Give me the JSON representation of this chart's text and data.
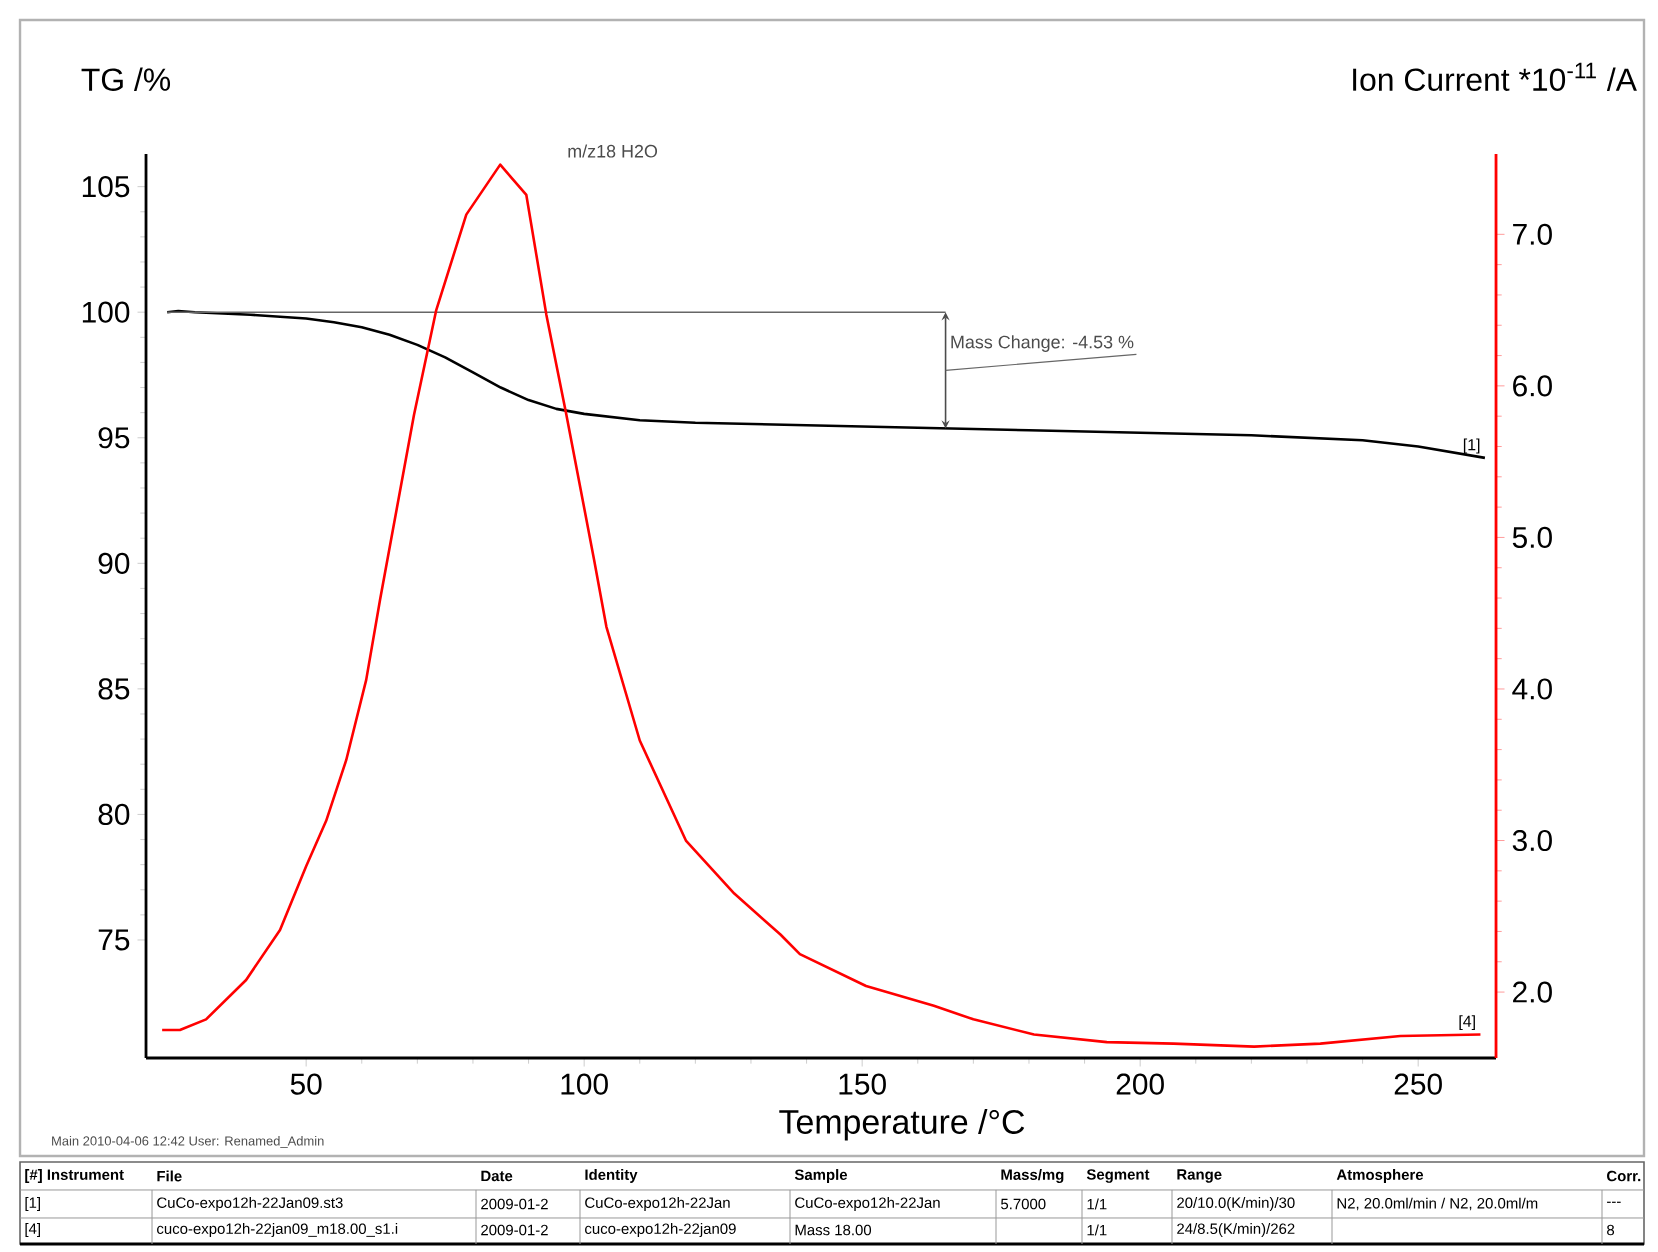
{
  "chart_data": {
    "type": "line",
    "xlabel": "Temperature /°C",
    "ylabel": "TG /%",
    "y2label": "Ion Current *10$^{-11}$ /A",
    "xlim": [
      21.2,
      264
    ],
    "xticks": [
      50,
      100,
      150,
      200,
      250
    ],
    "ylim": [
      70.3,
      106.3
    ],
    "yticks": [
      75,
      80,
      85,
      90,
      95,
      100,
      105
    ],
    "y2lim": [
      1.565,
      7.53
    ],
    "y2ticks": [
      {
        "value": 2,
        "label": "2.0"
      },
      {
        "value": 3,
        "label": "3.0"
      },
      {
        "value": 4,
        "label": "4.0"
      },
      {
        "value": 5,
        "label": "5.0"
      },
      {
        "value": 6,
        "label": "6.0"
      },
      {
        "value": 7,
        "label": "7.0"
      }
    ],
    "series": [
      {
        "color": "#000000",
        "x": [
          25,
          27,
          30,
          40,
          50,
          55,
          60,
          65,
          70,
          75,
          80,
          85,
          90,
          95,
          100,
          110,
          120,
          140,
          160,
          180,
          200,
          220,
          240,
          250,
          262
        ],
        "values": [
          100.0,
          100.05,
          100.0,
          99.9,
          99.75,
          99.6,
          99.4,
          99.1,
          98.7,
          98.2,
          97.6,
          97.0,
          96.5,
          96.15,
          95.95,
          95.7,
          95.6,
          95.5,
          95.4,
          95.3,
          95.2,
          95.1,
          94.9,
          94.65,
          94.2
        ]
      },
      {
        "name": "m/z18 H2O",
        "color": "#ff0000",
        "axis": "y2",
        "x": [
          24.1,
          27.3,
          32,
          39.2,
          45.3,
          50,
          53.6,
          57.2,
          60.8,
          63.3,
          69.4,
          73.4,
          78.8,
          84.9,
          89.6,
          93.2,
          96.8,
          101.8,
          104,
          110,
          118.3,
          127,
          135.3,
          138.8,
          150.7,
          162.9,
          170,
          180.9,
          194,
          206,
          220.5,
          232.4,
          246.8,
          261.2
        ],
        "values": [
          1.75,
          1.75,
          1.82,
          2.08,
          2.41,
          2.83,
          3.13,
          3.53,
          4.06,
          4.59,
          5.81,
          6.5,
          7.13,
          7.46,
          7.26,
          6.47,
          5.81,
          4.85,
          4.41,
          3.66,
          3.0,
          2.65,
          2.38,
          2.25,
          2.04,
          1.91,
          1.82,
          1.72,
          1.67,
          1.66,
          1.64,
          1.66,
          1.71,
          1.72
        ]
      }
    ],
    "annotations": [
      {
        "text": "Mass Change: -4.53 %",
        "x": 165,
        "y": 95.37
      },
      "[1]",
      "[4]",
      "Main   2010-04-06 12:42   User: Renamed_Admin",
      "[#] Instrument",
      "File",
      "Date",
      "Identity",
      "Sample",
      "Mass/mg",
      "Segment",
      "Range",
      "Atmosphere",
      "Corr.",
      "[1]",
      "CuCo-expo12h-22Jan09.st3",
      "2009-01-2",
      "CuCo-expo12h-22Jan",
      "CuCo-expo12h-22Jan",
      "5.7000",
      "1/1",
      "20/10.0(K/min)/30",
      "N2, 20.0ml/min / N2, 20.0ml/m",
      "---",
      "[4]",
      "cuco-expo12h-22jan09_m18.00_s1.i",
      "2009-01-2",
      "cuco-expo12h-22jan09",
      "Mass  18.00",
      "1/1",
      "24/8.5(K/min)/262",
      "8"
    ]
  }
}
